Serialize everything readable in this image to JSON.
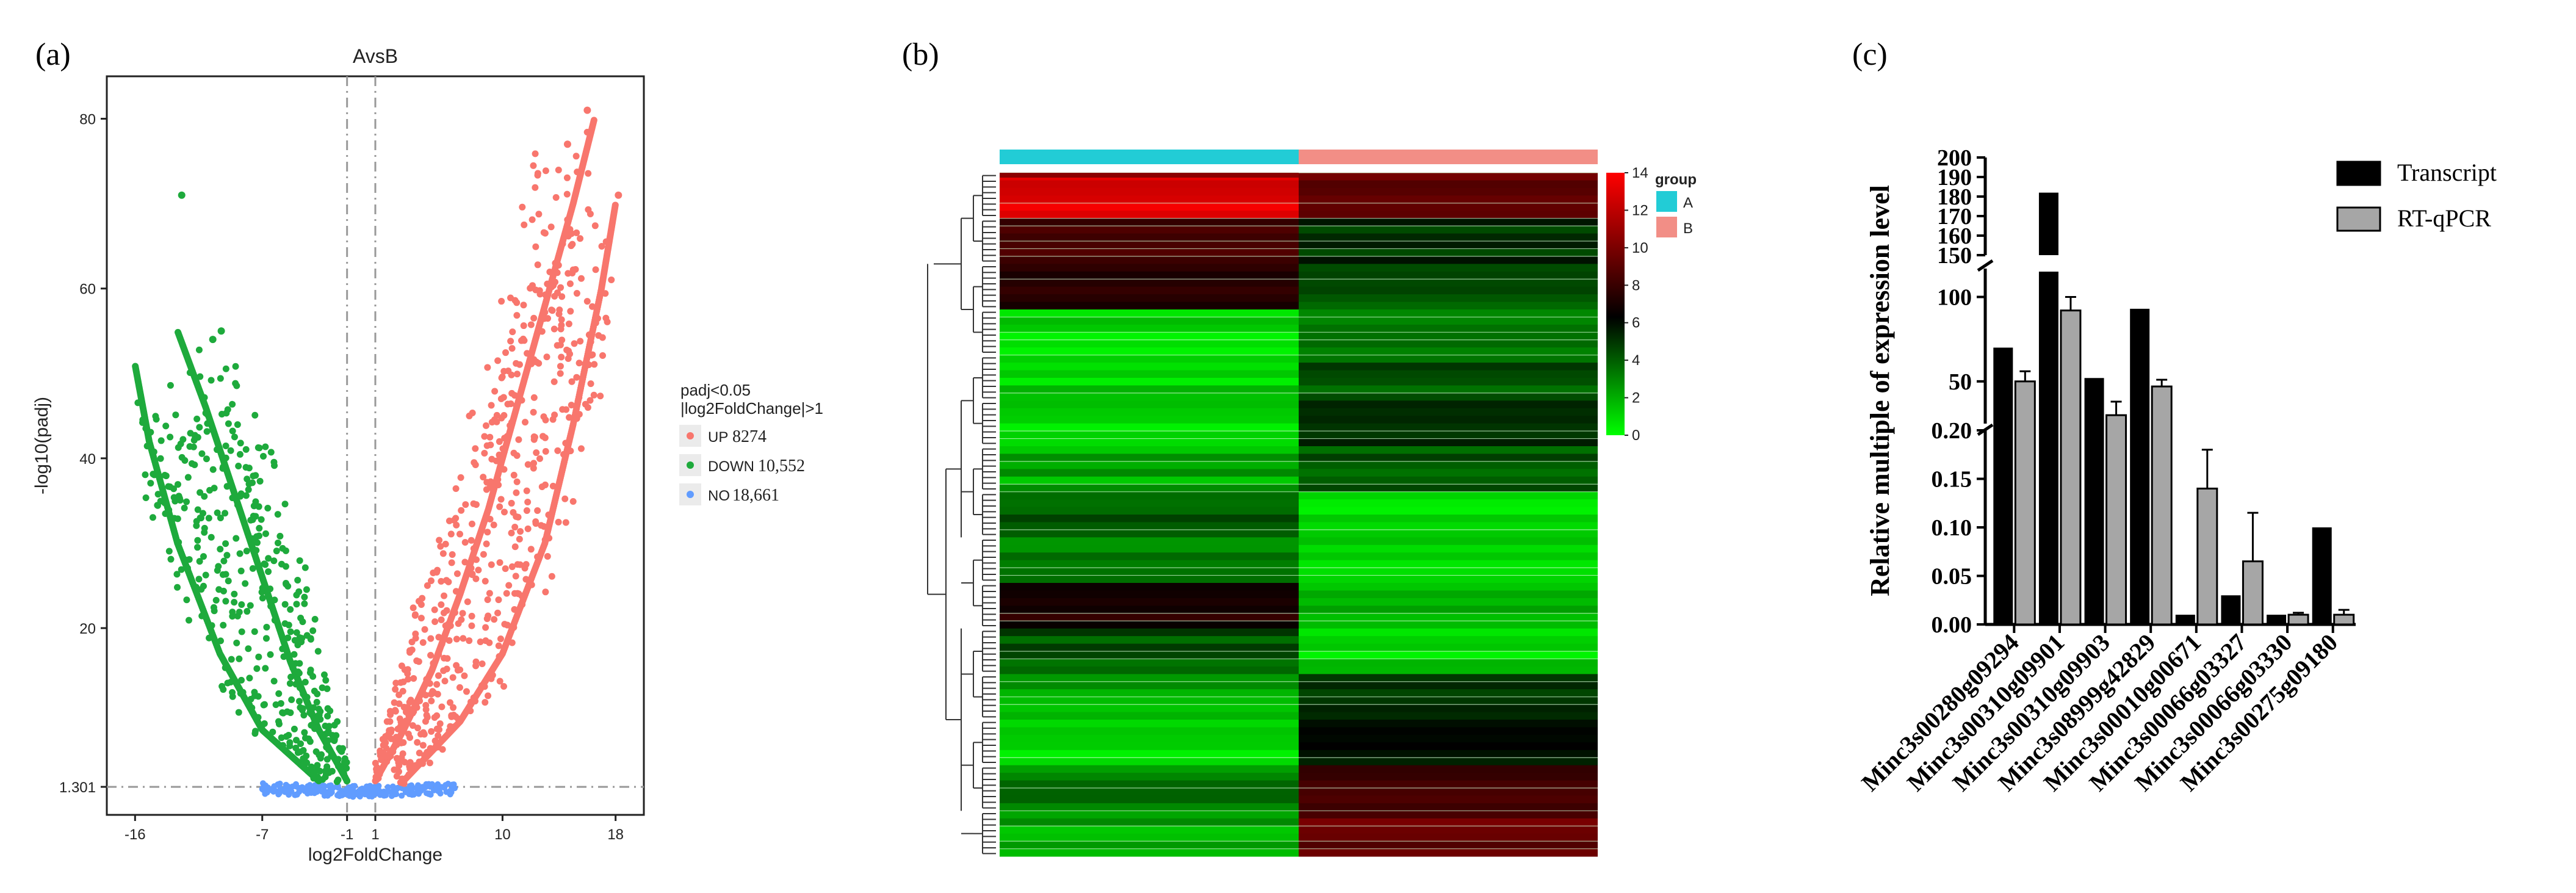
{
  "panel_labels": [
    "(a)",
    "(b)",
    "(c)"
  ],
  "chart_data": [
    {
      "type": "scatter",
      "subtype": "volcano",
      "title": "AvsB",
      "xlabel": "log2FoldChange",
      "ylabel": "-log10(padj)",
      "x_ticks": [
        -16,
        -7,
        -1,
        1,
        10,
        18
      ],
      "y_ticks": [
        1.301,
        20,
        40,
        60,
        80
      ],
      "xlim": [
        -18,
        20
      ],
      "ylim": [
        -2,
        85
      ],
      "threshold_lines": {
        "x": [
          -1,
          1
        ],
        "y": 1.301
      },
      "legend": {
        "title_line1": "padj<0.05",
        "title_line2": "|log2FoldChange|>1",
        "placement": "right",
        "entries": [
          {
            "key": "UP",
            "count": "8274",
            "color": "#F8766D"
          },
          {
            "key": "DOWN",
            "count": "10,552",
            "color": "#1EAA3C"
          },
          {
            "key": "NO",
            "count": "18,661",
            "color": "#619CFF"
          }
        ]
      },
      "envelopes": [
        {
          "name": "UP",
          "color": "#F8766D",
          "curves": [
            [
              1,
              2
            ],
            [
              3,
              8
            ],
            [
              5,
              15
            ],
            [
              7,
              24
            ],
            [
              9,
              34
            ],
            [
              11,
              46
            ],
            [
              13,
              58
            ],
            [
              15,
              70
            ],
            [
              16.5,
              80
            ]
          ]
        },
        {
          "name": "UP",
          "color": "#F8766D",
          "curves": [
            [
              3,
              2
            ],
            [
              7,
              9
            ],
            [
              10,
              17
            ],
            [
              13,
              30
            ],
            [
              15,
              44
            ],
            [
              17,
              60
            ],
            [
              18,
              70
            ]
          ]
        },
        {
          "name": "DOWN",
          "color": "#1EAA3C",
          "curves": [
            [
              -1,
              2
            ],
            [
              -3,
              8
            ],
            [
              -5,
              16
            ],
            [
              -7,
              26
            ],
            [
              -9,
              36
            ],
            [
              -11,
              46
            ],
            [
              -13,
              55
            ]
          ]
        },
        {
          "name": "DOWN",
          "color": "#1EAA3C",
          "curves": [
            [
              -3,
              2
            ],
            [
              -7,
              8
            ],
            [
              -10,
              17
            ],
            [
              -13,
              30
            ],
            [
              -15,
              42
            ],
            [
              -16,
              51
            ]
          ]
        }
      ],
      "notable_points": [
        {
          "x": 16,
          "y": 81,
          "group": "UP"
        },
        {
          "x": 14.6,
          "y": 77,
          "group": "UP"
        },
        {
          "x": 18.2,
          "y": 71,
          "group": "UP"
        },
        {
          "x": -12.7,
          "y": 71,
          "group": "DOWN"
        },
        {
          "x": -9.9,
          "y": 55,
          "group": "DOWN"
        },
        {
          "x": -10.5,
          "y": 54,
          "group": "DOWN"
        }
      ]
    },
    {
      "type": "heatmap",
      "columns_groups": [
        {
          "name": "A",
          "color": "#22CCD6"
        },
        {
          "name": "B",
          "color": "#F28E86"
        }
      ],
      "legend_title": "group",
      "scale_ticks": [
        0,
        2,
        4,
        6,
        8,
        10,
        12,
        14
      ],
      "scale_colors": [
        "#00FF00",
        "#000000",
        "#FF0000"
      ],
      "row_bands": [
        {
          "a": 13,
          "b": 9
        },
        {
          "a": 8,
          "b": 5
        },
        {
          "a": 7,
          "b": 4
        },
        {
          "a": 1,
          "b": 3
        },
        {
          "a": 1,
          "b": 4
        },
        {
          "a": 1,
          "b": 5
        },
        {
          "a": 2,
          "b": 4
        },
        {
          "a": 4,
          "b": 1
        },
        {
          "a": 3,
          "b": 1
        },
        {
          "a": 7,
          "b": 2
        },
        {
          "a": 4,
          "b": 1
        },
        {
          "a": 2,
          "b": 5
        },
        {
          "a": 1,
          "b": 6
        },
        {
          "a": 3,
          "b": 8
        },
        {
          "a": 2,
          "b": 9
        }
      ]
    },
    {
      "type": "bar",
      "ylabel": "Relative multiple of expression level",
      "categories": [
        "Minc3s00280g09294",
        "Minc3s00310g09901",
        "Minc3s00310g09903",
        "Minc3s08999g42829",
        "Minc3s00010g00671",
        "Minc3s00066g03327",
        "Minc3s00066g03330",
        "Minc3s00275g09180"
      ],
      "series": [
        {
          "name": "Transcript",
          "color": "#000000",
          "values": [
            70,
            182,
            52,
            93,
            0.01,
            0.03,
            0.01,
            0.1
          ]
        },
        {
          "name": "RT-qPCR",
          "color": "#A6A6A6",
          "values": [
            50,
            92,
            30,
            47,
            0.14,
            0.065,
            0.01,
            0.01
          ],
          "errors": [
            6,
            8,
            8,
            4,
            0.04,
            0.05,
            0.002,
            0.005
          ]
        }
      ],
      "y_segments": [
        {
          "range": [
            0,
            0.2
          ],
          "ticks": [
            "0.00",
            "0.05",
            "0.10",
            "0.15",
            "0.20"
          ]
        },
        {
          "range": [
            25,
            115
          ],
          "ticks": [
            "50",
            "100"
          ]
        },
        {
          "range": [
            150,
            200
          ],
          "ticks": [
            "150",
            "160",
            "170",
            "180",
            "190",
            "200"
          ]
        }
      ],
      "legend_placement": "top-right"
    }
  ]
}
